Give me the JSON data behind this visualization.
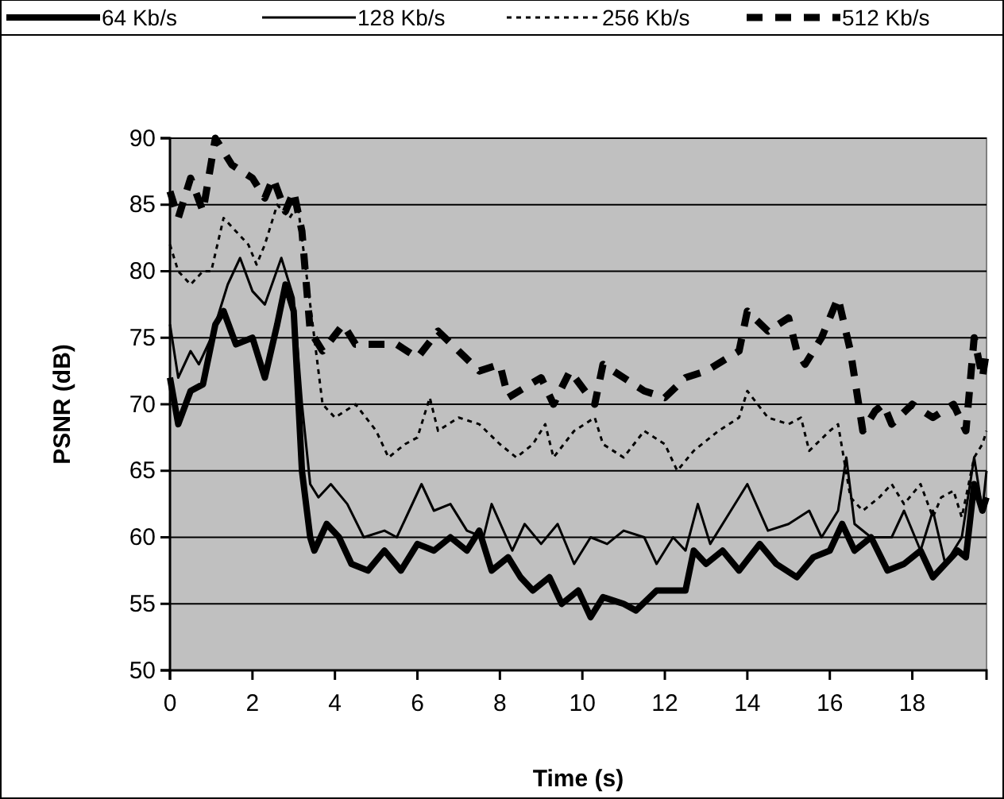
{
  "chart_data": {
    "type": "line",
    "xlabel": "Time (s)",
    "ylabel": "PSNR (dB)",
    "xlim": [
      0,
      19.8
    ],
    "xticks": [
      0,
      2,
      4,
      6,
      8,
      10,
      12,
      14,
      16,
      18
    ],
    "ylim": [
      50,
      90
    ],
    "yticks": [
      50,
      55,
      60,
      65,
      70,
      75,
      80,
      85,
      90
    ],
    "grid": "y",
    "legend": "top",
    "marker": "none",
    "series": [
      {
        "name": "64 Kb/s",
        "color": "#000000",
        "line_style": "solid",
        "x": [
          0,
          0.2,
          0.5,
          0.8,
          1.1,
          1.3,
          1.6,
          2,
          2.3,
          2.6,
          2.8,
          3,
          3.2,
          3.4,
          3.5,
          3.8,
          4.1,
          4.4,
          4.8,
          5.2,
          5.6,
          6,
          6.4,
          6.8,
          7.2,
          7.5,
          7.8,
          8.2,
          8.5,
          8.8,
          9.2,
          9.5,
          9.9,
          10.2,
          10.5,
          11,
          11.3,
          11.8,
          12.5,
          12.7,
          13,
          13.4,
          13.8,
          14.3,
          14.7,
          15.2,
          15.6,
          16,
          16.3,
          16.6,
          17,
          17.4,
          17.8,
          18.2,
          18.5,
          18.8,
          19.1,
          19.3,
          19.5,
          19.7,
          19.8
        ],
        "values": [
          72,
          68.5,
          71,
          71.5,
          76,
          77,
          74.5,
          75,
          72,
          76,
          79,
          77,
          65,
          60,
          59,
          61,
          60,
          58,
          57.5,
          59,
          57.5,
          59.5,
          59,
          60,
          59,
          60.5,
          57.5,
          58.5,
          57,
          56,
          57,
          55,
          56,
          54,
          55.5,
          55,
          54.5,
          56,
          56,
          59,
          58,
          59,
          57.5,
          59.5,
          58,
          57,
          58.5,
          59,
          61,
          59,
          60,
          57.5,
          58,
          59,
          57,
          58,
          59,
          58.5,
          64,
          62,
          63
        ]
      },
      {
        "name": "128 Kb/s",
        "color": "#000000",
        "line_style": "solid",
        "x": [
          0,
          0.2,
          0.5,
          0.7,
          1,
          1.4,
          1.7,
          2,
          2.3,
          2.7,
          3,
          3.2,
          3.4,
          3.6,
          3.9,
          4.3,
          4.7,
          5.2,
          5.5,
          5.8,
          6.1,
          6.4,
          6.8,
          7.2,
          7.6,
          7.8,
          8.3,
          8.6,
          9,
          9.4,
          9.8,
          10.2,
          10.6,
          11,
          11.5,
          11.8,
          12.2,
          12.5,
          12.8,
          13.1,
          13.6,
          14,
          14.5,
          15,
          15.5,
          15.8,
          16.2,
          16.4,
          16.6,
          17,
          17.5,
          17.8,
          18.2,
          18.5,
          18.8,
          19.2,
          19.5,
          19.7,
          19.8
        ],
        "values": [
          76,
          72,
          74,
          73,
          75,
          79,
          81,
          78.5,
          77.5,
          81,
          78,
          70,
          64,
          63,
          64,
          62.5,
          60,
          60.5,
          60,
          62,
          64,
          62,
          62.5,
          60.5,
          60,
          62.5,
          59,
          61,
          59.5,
          61,
          58,
          60,
          59.5,
          60.5,
          60,
          58,
          60,
          59,
          62.5,
          59.5,
          62,
          64,
          60.5,
          61,
          62,
          60,
          62,
          66,
          61,
          60,
          60,
          62,
          59,
          62,
          58,
          60,
          66,
          62,
          65
        ]
      },
      {
        "name": "256 Kb/s",
        "color": "#000000",
        "line_style": "dotted",
        "x": [
          0,
          0.2,
          0.5,
          0.8,
          1,
          1.3,
          1.6,
          1.9,
          2.1,
          2.3,
          2.6,
          2.9,
          3.1,
          3.3,
          3.5,
          3.7,
          4,
          4.5,
          5,
          5.3,
          5.7,
          6,
          6.3,
          6.5,
          7,
          7.5,
          8,
          8.4,
          8.8,
          9.1,
          9.3,
          9.8,
          10.3,
          10.5,
          11,
          11.5,
          12,
          12.3,
          12.7,
          13.3,
          13.8,
          14,
          14.5,
          15,
          15.3,
          15.5,
          16,
          16.2,
          16.5,
          16.8,
          17.2,
          17.5,
          17.8,
          18.2,
          18.5,
          18.7,
          19,
          19.2,
          19.5,
          19.7,
          19.8
        ],
        "values": [
          82,
          80,
          79,
          80,
          80,
          84,
          83,
          82,
          80.5,
          82,
          85,
          84,
          85,
          80,
          75,
          70,
          69,
          70,
          68,
          66,
          67,
          67.5,
          70.5,
          68,
          69,
          68.5,
          67,
          66,
          67,
          68.5,
          66,
          68,
          69,
          67,
          66,
          68,
          67,
          65,
          66.5,
          68,
          69,
          71,
          69,
          68.5,
          69,
          66.5,
          68,
          68.5,
          63,
          62,
          63,
          64,
          62.5,
          64,
          61.5,
          63,
          63.5,
          61.5,
          66,
          67,
          68
        ]
      },
      {
        "name": "512 Kb/s",
        "color": "#000000",
        "line_style": "dashed",
        "x": [
          0,
          0.2,
          0.5,
          0.8,
          1.1,
          1.5,
          2,
          2.3,
          2.5,
          2.8,
          3,
          3.2,
          3.4,
          3.7,
          4.2,
          4.5,
          5.5,
          6,
          6.5,
          7,
          7.5,
          8,
          8.2,
          9,
          9.3,
          9.7,
          10.3,
          10.5,
          11,
          11.5,
          12,
          12.5,
          13,
          13.8,
          14,
          14.5,
          15,
          15.2,
          15.4,
          15.8,
          16.2,
          16.5,
          16.8,
          17.1,
          17.3,
          17.5,
          18,
          18.5,
          19,
          19.3,
          19.5,
          19.7,
          19.8
        ],
        "values": [
          86,
          84,
          87,
          84.5,
          90,
          88,
          87,
          85.5,
          87,
          84.5,
          86,
          83,
          75.5,
          74,
          76,
          74.5,
          74.5,
          73.5,
          75.5,
          74,
          72.5,
          73,
          70.5,
          72,
          70,
          72.5,
          70,
          73,
          72,
          71,
          70.5,
          72,
          72.5,
          74,
          77,
          75.5,
          76.5,
          74,
          73,
          75,
          78,
          74,
          68,
          69.5,
          70,
          68.5,
          70,
          69,
          70,
          68,
          75,
          72,
          74
        ]
      }
    ]
  }
}
